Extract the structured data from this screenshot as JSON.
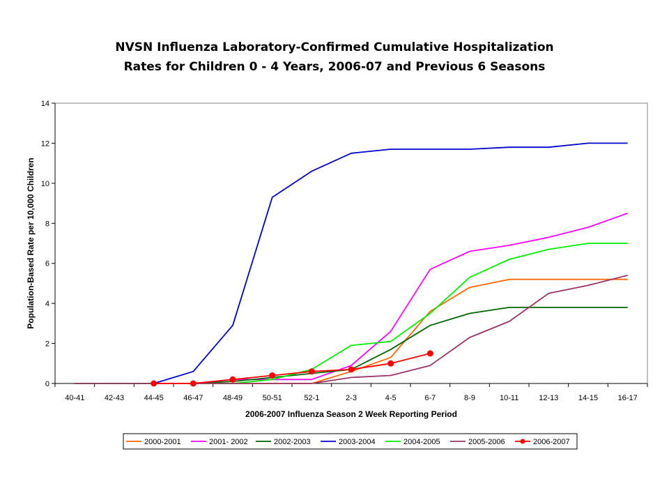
{
  "chart_data": {
    "type": "line",
    "title_line1": "NVSN Influenza Laboratory-Confirmed Cumulative Hospitalization",
    "title_line2": "Rates for Children 0 - 4 Years, 2006-07 and Previous 6 Seasons",
    "xlabel": "2006-2007 Influenza Season 2 Week Reporting Period",
    "ylabel": "Population-Based Rate per 10,000 Children",
    "ylim": [
      0,
      14
    ],
    "yticks": [
      0,
      2,
      4,
      6,
      8,
      10,
      12,
      14
    ],
    "grid": false,
    "legend_position": "bottom",
    "categories": [
      "40-41",
      "42-43",
      "44-45",
      "46-47",
      "48-49",
      "50-51",
      "52-1",
      "2-3",
      "4-5",
      "6-7",
      "8-9",
      "10-11",
      "12-13",
      "14-15",
      "16-17"
    ],
    "series": [
      {
        "name": "2000-2001",
        "color": "#ff6600",
        "marker": false,
        "values": [
          0,
          0,
          0,
          0,
          0,
          0,
          0,
          0.6,
          1.3,
          3.6,
          4.8,
          5.2,
          5.2,
          5.2,
          5.2
        ]
      },
      {
        "name": "2001- 2002",
        "color": "#ff00ff",
        "marker": false,
        "values": [
          0,
          0,
          0,
          0,
          0.2,
          0.2,
          0.2,
          0.9,
          2.6,
          5.7,
          6.6,
          6.9,
          7.3,
          7.8,
          8.5
        ]
      },
      {
        "name": "2002-2003",
        "color": "#006600",
        "marker": false,
        "values": [
          0,
          0,
          0,
          0,
          0.1,
          0.3,
          0.5,
          0.7,
          1.7,
          2.9,
          3.5,
          3.8,
          3.8,
          3.8,
          3.8
        ]
      },
      {
        "name": "2003-2004",
        "color": "#0000cc",
        "marker": false,
        "values": [
          0,
          0,
          0,
          0.6,
          2.9,
          9.3,
          10.6,
          11.5,
          11.7,
          11.7,
          11.7,
          11.8,
          11.8,
          12.0,
          12.0
        ]
      },
      {
        "name": "2004-2005",
        "color": "#00ee00",
        "marker": false,
        "values": [
          0,
          0,
          0,
          0,
          0,
          0.2,
          0.7,
          1.9,
          2.1,
          3.5,
          5.3,
          6.2,
          6.7,
          7.0,
          7.0
        ]
      },
      {
        "name": "2005-2006",
        "color": "#993366",
        "marker": false,
        "values": [
          0,
          0,
          0,
          0,
          0,
          0,
          0,
          0.3,
          0.4,
          0.9,
          2.3,
          3.1,
          4.5,
          4.9,
          5.4
        ]
      },
      {
        "name": "2006-2007",
        "color": "#ff0000",
        "marker": true,
        "values": [
          null,
          null,
          0,
          0,
          0.2,
          0.4,
          0.6,
          0.7,
          1.0,
          1.5,
          null,
          null,
          null,
          null,
          null
        ]
      }
    ]
  }
}
